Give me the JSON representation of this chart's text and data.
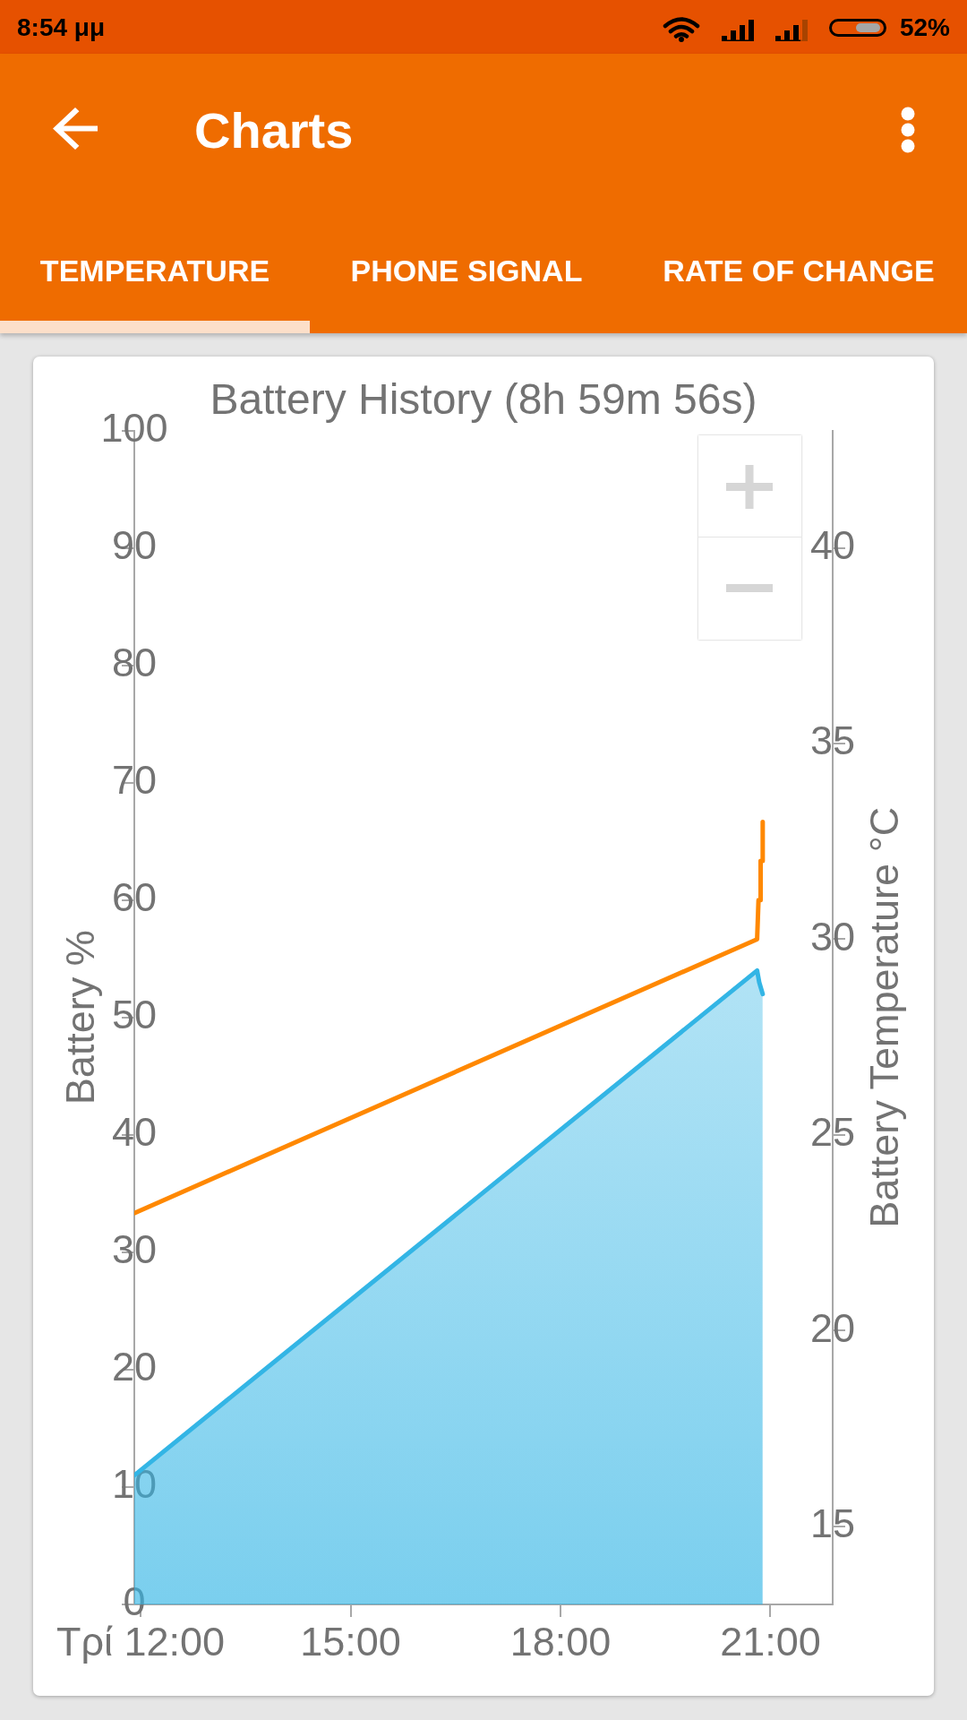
{
  "chart_data": {
    "type": "line",
    "title": "Battery History (8h 59m 56s)",
    "ylabel": "Battery %",
    "y2label": "Battery Temperature °C",
    "annotations": [
      "8:54 μμ",
      "52%",
      "Charts",
      "TEMPERATURE",
      "PHONE SIGNAL",
      "RATE OF CHANGE"
    ],
    "xlim": [
      11.91,
      21.89
    ],
    "xticks": [
      {
        "value": 12,
        "label": "Τρί 12:00"
      },
      {
        "value": 15,
        "label": "15:00"
      },
      {
        "value": 18,
        "label": "18:00"
      },
      {
        "value": 21,
        "label": "21:00"
      }
    ],
    "ylim": [
      0,
      100
    ],
    "yticks": [
      0,
      10,
      20,
      30,
      40,
      50,
      60,
      70,
      80,
      90,
      100
    ],
    "y2lim": [
      13,
      43
    ],
    "y2ticks": [
      15,
      20,
      25,
      30,
      35,
      40
    ],
    "grid": false,
    "legend": false,
    "marker": "none",
    "series": [
      {
        "type": "area",
        "color": "#33b5e5",
        "x": [
          11.91,
          20.81,
          20.84,
          20.89
        ],
        "values": [
          11,
          54,
          53,
          52
        ]
      },
      {
        "type": "line",
        "axis": "y2",
        "color": "#ff8800",
        "x": [
          11.91,
          20.81,
          20.83,
          20.86,
          20.86,
          20.89,
          20.89
        ],
        "values": [
          23,
          30,
          31,
          31,
          32,
          32,
          33
        ]
      }
    ]
  }
}
